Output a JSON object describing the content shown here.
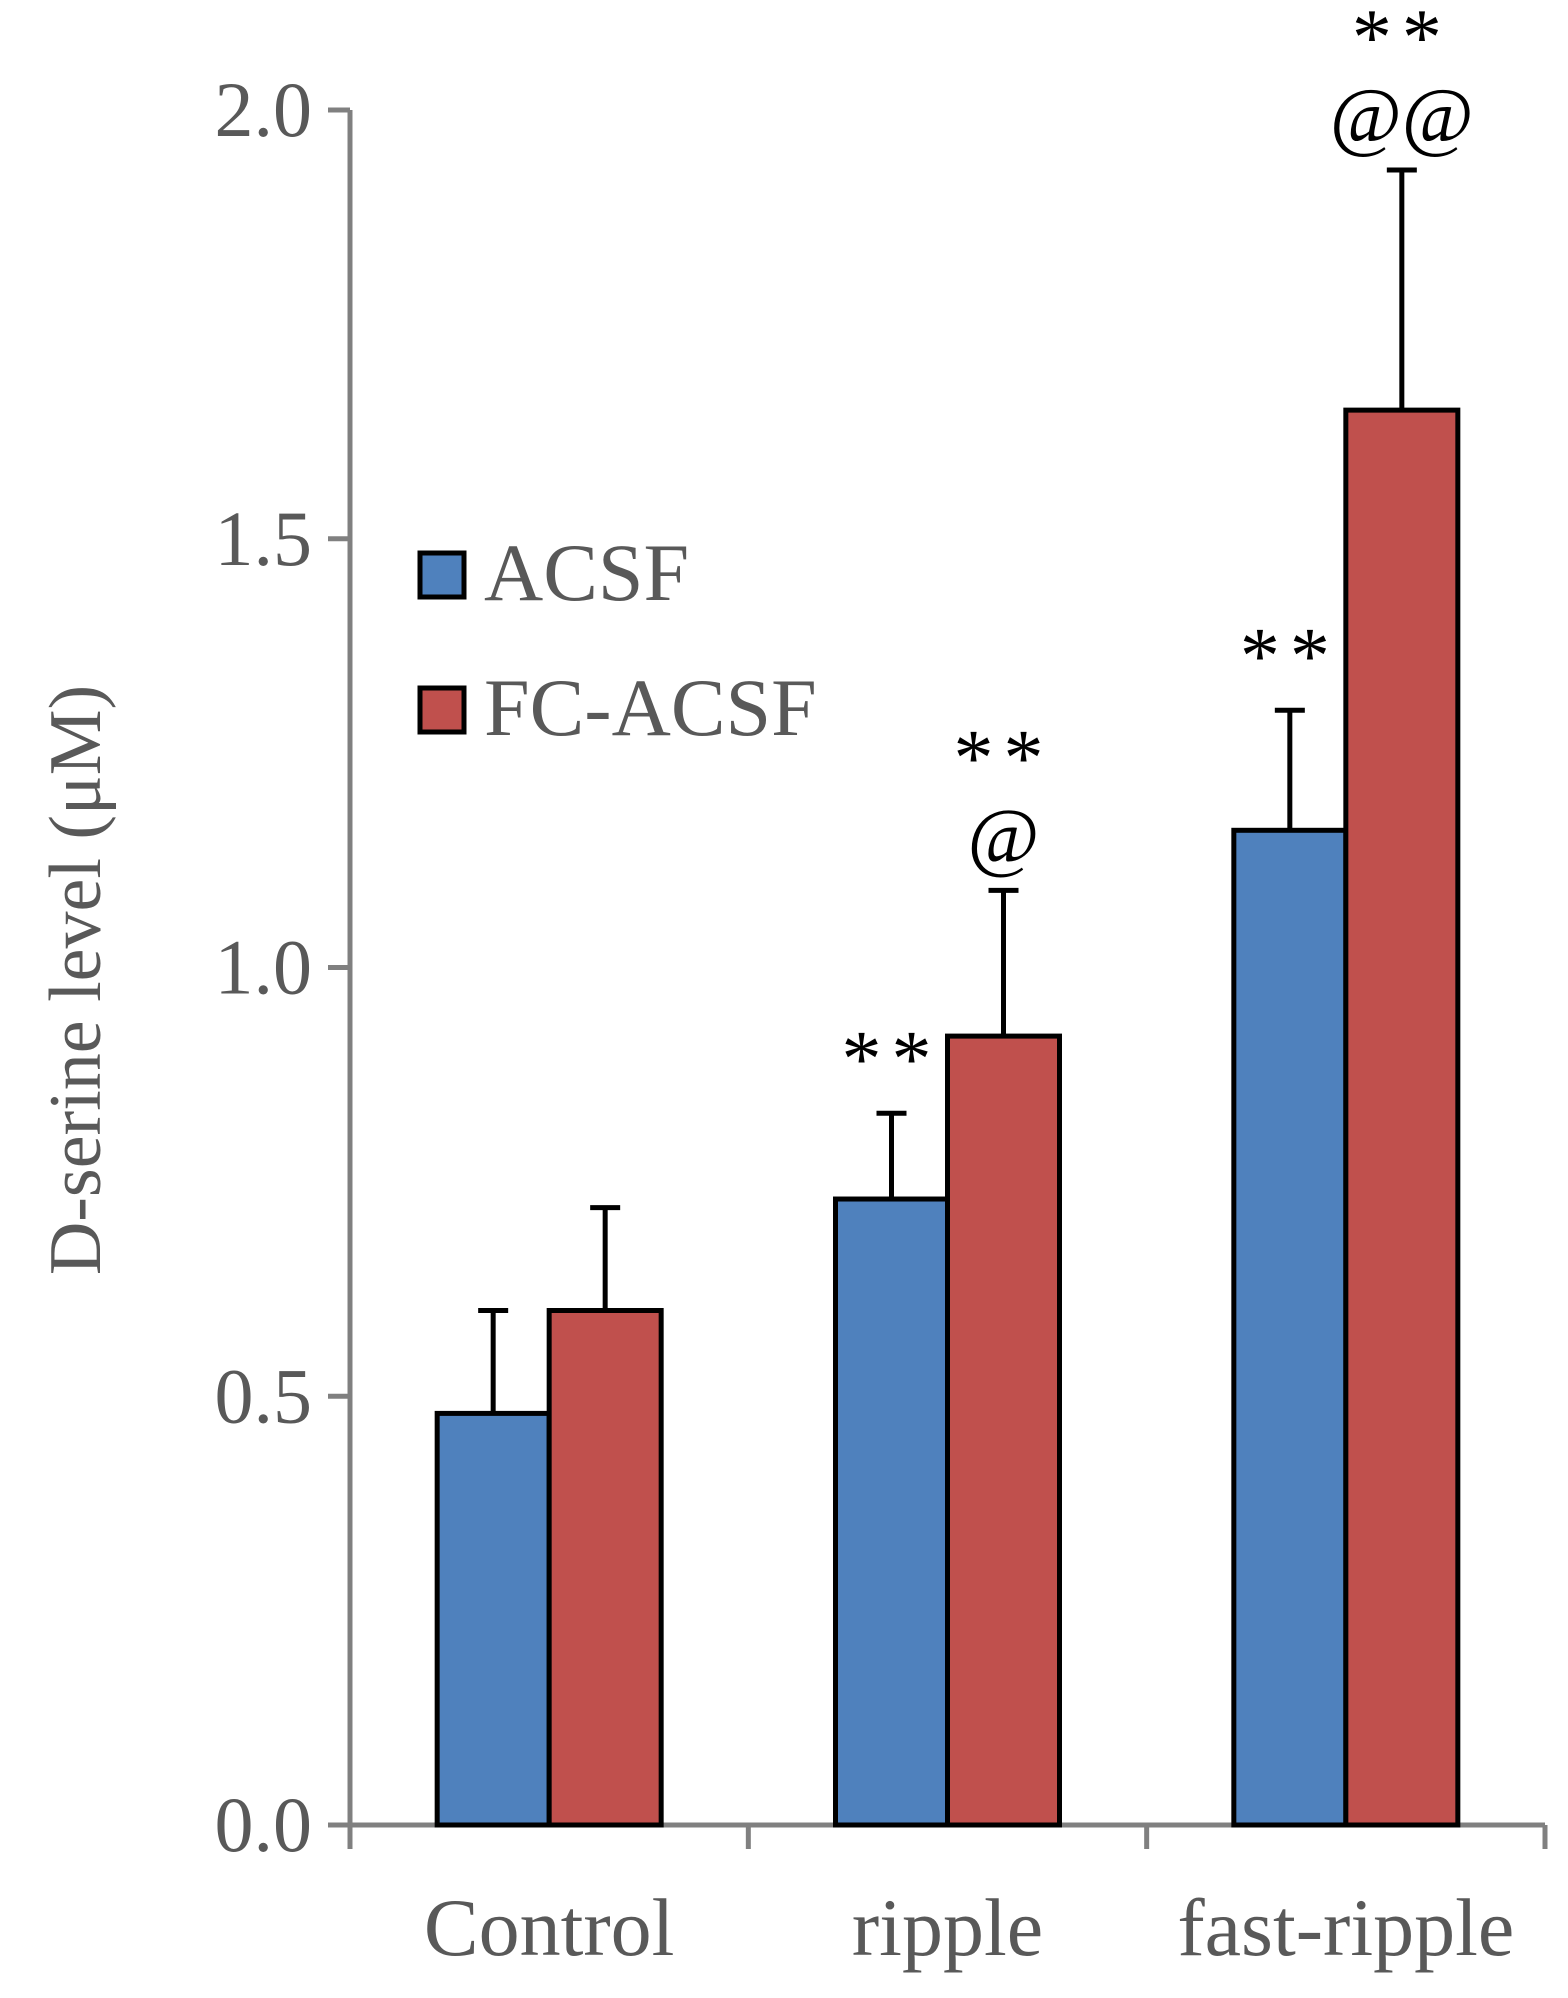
{
  "chart_data": {
    "type": "bar",
    "title": "",
    "xlabel": "",
    "ylabel": "D-serine level (μM)",
    "ylim": [
      0,
      2.0
    ],
    "yticks": [
      0.0,
      0.5,
      1.0,
      1.5,
      2.0
    ],
    "ytick_labels": [
      "0.0",
      "0.5",
      "1.0",
      "1.5",
      "2.0"
    ],
    "grid": false,
    "categories": [
      "Control",
      "ripple",
      "fast-ripple"
    ],
    "series": [
      {
        "name": "ACSF",
        "color": "#4f81bd",
        "values": [
          0.48,
          0.73,
          1.16
        ],
        "errors": [
          0.12,
          0.1,
          0.14
        ],
        "annotations": [
          "",
          "**",
          "**"
        ]
      },
      {
        "name": "FC-ACSF",
        "color": "#c0504d",
        "values": [
          0.6,
          0.92,
          1.65
        ],
        "errors": [
          0.12,
          0.17,
          0.28
        ],
        "annotations": [
          "",
          "**\n@",
          "**\n@@"
        ]
      }
    ],
    "legend_position": "upper-left"
  }
}
